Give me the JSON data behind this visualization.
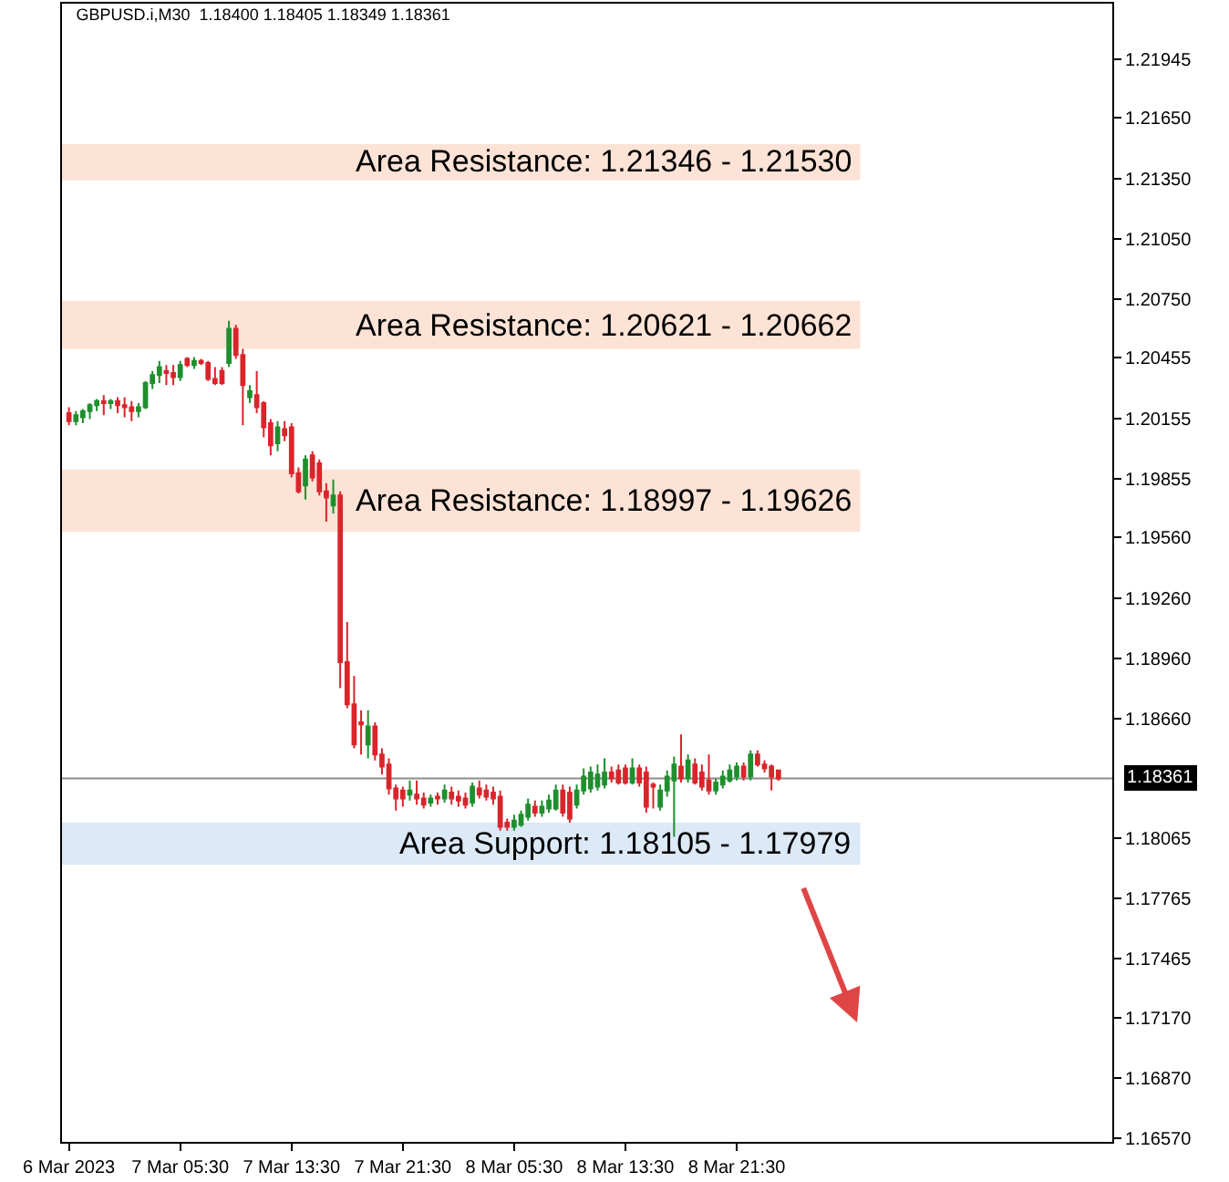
{
  "chart_data": {
    "type": "candlestick",
    "title": "GBPUSD.i,M30  1.18400 1.18405 1.18349 1.18361",
    "x": [
      "2023-03-06T21:30",
      "2023-03-06T22:00",
      "2023-03-06T22:30",
      "2023-03-06T23:00",
      "2023-03-06T23:30",
      "2023-03-07T00:00",
      "2023-03-07T00:30",
      "2023-03-07T01:00",
      "2023-03-07T01:30",
      "2023-03-07T02:00",
      "2023-03-07T02:30",
      "2023-03-07T03:00",
      "2023-03-07T03:30",
      "2023-03-07T04:00",
      "2023-03-07T04:30",
      "2023-03-07T05:00",
      "2023-03-07T05:30",
      "2023-03-07T06:00",
      "2023-03-07T06:30",
      "2023-03-07T07:00",
      "2023-03-07T07:30",
      "2023-03-07T08:00",
      "2023-03-07T08:30",
      "2023-03-07T09:00",
      "2023-03-07T09:30",
      "2023-03-07T10:00",
      "2023-03-07T10:30",
      "2023-03-07T11:00",
      "2023-03-07T11:30",
      "2023-03-07T12:00",
      "2023-03-07T12:30",
      "2023-03-07T13:00",
      "2023-03-07T13:30",
      "2023-03-07T14:00",
      "2023-03-07T14:30",
      "2023-03-07T15:00",
      "2023-03-07T15:30",
      "2023-03-07T16:00",
      "2023-03-07T16:30",
      "2023-03-07T17:00",
      "2023-03-07T17:30",
      "2023-03-07T18:00",
      "2023-03-07T18:30",
      "2023-03-07T19:00",
      "2023-03-07T19:30",
      "2023-03-07T20:00",
      "2023-03-07T20:30",
      "2023-03-07T21:00",
      "2023-03-07T21:30",
      "2023-03-07T22:00",
      "2023-03-07T22:30",
      "2023-03-07T23:00",
      "2023-03-07T23:30",
      "2023-03-08T00:00",
      "2023-03-08T00:30",
      "2023-03-08T01:00",
      "2023-03-08T01:30",
      "2023-03-08T02:00",
      "2023-03-08T02:30",
      "2023-03-08T03:00",
      "2023-03-08T03:30",
      "2023-03-08T04:00",
      "2023-03-08T04:30",
      "2023-03-08T05:00",
      "2023-03-08T05:30",
      "2023-03-08T06:00",
      "2023-03-08T06:30",
      "2023-03-08T07:00",
      "2023-03-08T07:30",
      "2023-03-08T08:00",
      "2023-03-08T08:30",
      "2023-03-08T09:00",
      "2023-03-08T09:30",
      "2023-03-08T10:00",
      "2023-03-08T10:30",
      "2023-03-08T11:00",
      "2023-03-08T11:30",
      "2023-03-08T12:00",
      "2023-03-08T12:30",
      "2023-03-08T13:00",
      "2023-03-08T13:30",
      "2023-03-08T14:00",
      "2023-03-08T14:30",
      "2023-03-08T15:00",
      "2023-03-08T15:30",
      "2023-03-08T16:00",
      "2023-03-08T16:30",
      "2023-03-08T17:00",
      "2023-03-08T17:30",
      "2023-03-08T18:00",
      "2023-03-08T18:30",
      "2023-03-08T19:00",
      "2023-03-08T19:30",
      "2023-03-08T20:00",
      "2023-03-08T20:30",
      "2023-03-08T21:00",
      "2023-03-08T21:30",
      "2023-03-08T22:00",
      "2023-03-08T22:30",
      "2023-03-08T23:00",
      "2023-03-08T23:30",
      "2023-03-09T00:00",
      "2023-03-09T00:30"
    ],
    "ohlc": [
      [
        1.2018,
        1.2021,
        1.2012,
        1.2014
      ],
      [
        1.2014,
        1.2019,
        1.2012,
        1.2017
      ],
      [
        1.2016,
        1.202,
        1.2013,
        1.2019
      ],
      [
        1.2019,
        1.2023,
        1.2015,
        1.2022
      ],
      [
        1.2022,
        1.2025,
        1.2019,
        1.2024
      ],
      [
        1.2024,
        1.2027,
        1.2017,
        1.2023
      ],
      [
        1.2023,
        1.2025,
        1.202,
        1.2024
      ],
      [
        1.2024,
        1.2026,
        1.2018,
        1.2022
      ],
      [
        1.2022,
        1.2026,
        1.2016,
        1.2021
      ],
      [
        1.2021,
        1.2024,
        1.2014,
        1.2019
      ],
      [
        1.2019,
        1.2023,
        1.2016,
        1.2021
      ],
      [
        1.2021,
        1.2034,
        1.202,
        1.2033
      ],
      [
        1.2033,
        1.2039,
        1.203,
        1.2037
      ],
      [
        1.2037,
        1.2044,
        1.2033,
        1.2041
      ],
      [
        1.2039,
        1.2042,
        1.2032,
        1.2038
      ],
      [
        1.2038,
        1.2042,
        1.2032,
        1.2036
      ],
      [
        1.2036,
        1.2044,
        1.2034,
        1.2042
      ],
      [
        1.2045,
        1.2046,
        1.2041,
        1.2042
      ],
      [
        1.2042,
        1.2046,
        1.204,
        1.2044
      ],
      [
        1.2044,
        1.2045,
        1.2042,
        1.2043
      ],
      [
        1.2043,
        1.2044,
        1.2034,
        1.2035
      ],
      [
        1.2035,
        1.2041,
        1.2032,
        1.2033
      ],
      [
        1.2039,
        1.2041,
        1.2032,
        1.2033
      ],
      [
        1.2043,
        1.2064,
        1.2041,
        1.206
      ],
      [
        1.206,
        1.2062,
        1.2045,
        1.2047
      ],
      [
        1.2047,
        1.205,
        1.2012,
        1.2032
      ],
      [
        1.2026,
        1.2032,
        1.2023,
        1.2029
      ],
      [
        1.2027,
        1.2039,
        1.2018,
        1.2021
      ],
      [
        1.2023,
        1.2024,
        1.2006,
        1.2011
      ],
      [
        1.2013,
        1.2015,
        1.1997,
        1.2002
      ],
      [
        1.2003,
        1.2014,
        1.1999,
        1.2011
      ],
      [
        1.201,
        1.2014,
        1.2004,
        1.2007
      ],
      [
        1.2011,
        1.2013,
        1.1986,
        1.1988
      ],
      [
        1.1988,
        1.1991,
        1.1978,
        1.1979
      ],
      [
        1.1982,
        1.1997,
        1.1975,
        1.1995
      ],
      [
        1.1997,
        1.1999,
        1.1984,
        1.1986
      ],
      [
        1.1993,
        1.1995,
        1.1977,
        1.1979
      ],
      [
        1.1979,
        1.1983,
        1.1964,
        1.1976
      ],
      [
        1.1972,
        1.1985,
        1.1968,
        1.1977
      ],
      [
        1.1977,
        1.1979,
        1.1881,
        1.1894
      ],
      [
        1.1894,
        1.1914,
        1.1871,
        1.1873
      ],
      [
        1.1873,
        1.1887,
        1.1851,
        1.1853
      ],
      [
        1.1864,
        1.187,
        1.1848,
        1.1863
      ],
      [
        1.1853,
        1.187,
        1.1846,
        1.1862
      ],
      [
        1.1862,
        1.1864,
        1.1845,
        1.1848
      ],
      [
        1.1848,
        1.1851,
        1.1838,
        1.1842
      ],
      [
        1.1843,
        1.1846,
        1.1828,
        1.1831
      ],
      [
        1.1831,
        1.1833,
        1.182,
        1.1826
      ],
      [
        1.183,
        1.1832,
        1.1822,
        1.1826
      ],
      [
        1.1828,
        1.1835,
        1.1825,
        1.183
      ],
      [
        1.1828,
        1.1835,
        1.1823,
        1.1826
      ],
      [
        1.1826,
        1.1829,
        1.1821,
        1.1823
      ],
      [
        1.1824,
        1.1828,
        1.1822,
        1.1826
      ],
      [
        1.1827,
        1.1829,
        1.1823,
        1.1826
      ],
      [
        1.1826,
        1.1833,
        1.1824,
        1.183
      ],
      [
        1.1829,
        1.1832,
        1.1823,
        1.1826
      ],
      [
        1.1827,
        1.183,
        1.1822,
        1.1825
      ],
      [
        1.1826,
        1.1829,
        1.1821,
        1.1823
      ],
      [
        1.1824,
        1.1834,
        1.1822,
        1.1832
      ],
      [
        1.1831,
        1.1835,
        1.1826,
        1.1828
      ],
      [
        1.183,
        1.1833,
        1.1825,
        1.1827
      ],
      [
        1.1829,
        1.1832,
        1.1823,
        1.1826
      ],
      [
        1.1827,
        1.183,
        1.181,
        1.1812
      ],
      [
        1.1814,
        1.1816,
        1.181,
        1.1812
      ],
      [
        1.1812,
        1.1818,
        1.181,
        1.1815
      ],
      [
        1.1813,
        1.182,
        1.1812,
        1.1818
      ],
      [
        1.1817,
        1.1826,
        1.1815,
        1.1823
      ],
      [
        1.1822,
        1.1825,
        1.1817,
        1.1819
      ],
      [
        1.1819,
        1.1825,
        1.1817,
        1.1822
      ],
      [
        1.1821,
        1.1828,
        1.1819,
        1.1825
      ],
      [
        1.1821,
        1.1833,
        1.182,
        1.183
      ],
      [
        1.183,
        1.1833,
        1.1817,
        1.1819
      ],
      [
        1.1829,
        1.1832,
        1.1814,
        1.1816
      ],
      [
        1.1823,
        1.1833,
        1.1821,
        1.183
      ],
      [
        1.183,
        1.1841,
        1.1828,
        1.1837
      ],
      [
        1.1831,
        1.1842,
        1.1829,
        1.1839
      ],
      [
        1.1832,
        1.1843,
        1.183,
        1.1838
      ],
      [
        1.1833,
        1.1846,
        1.1831,
        1.1839
      ],
      [
        1.1839,
        1.1842,
        1.1834,
        1.1836
      ],
      [
        1.184,
        1.1843,
        1.1833,
        1.1834
      ],
      [
        1.1841,
        1.1843,
        1.1833,
        1.1834
      ],
      [
        1.1834,
        1.1846,
        1.1833,
        1.1841
      ],
      [
        1.1841,
        1.1843,
        1.1832,
        1.1834
      ],
      [
        1.1839,
        1.1842,
        1.1819,
        1.1822
      ],
      [
        1.1833,
        1.1834,
        1.1821,
        1.1832
      ],
      [
        1.1822,
        1.1833,
        1.182,
        1.183
      ],
      [
        1.183,
        1.184,
        1.1827,
        1.1837
      ],
      [
        1.1835,
        1.1847,
        1.1807,
        1.1843
      ],
      [
        1.1842,
        1.1858,
        1.1834,
        1.1836
      ],
      [
        1.1836,
        1.1848,
        1.1834,
        1.1845
      ],
      [
        1.1843,
        1.1846,
        1.1833,
        1.1834
      ],
      [
        1.1839,
        1.1843,
        1.183,
        1.1832
      ],
      [
        1.1835,
        1.1848,
        1.1828,
        1.183
      ],
      [
        1.183,
        1.1836,
        1.1828,
        1.1834
      ],
      [
        1.1833,
        1.184,
        1.1831,
        1.1837
      ],
      [
        1.1835,
        1.1843,
        1.1834,
        1.184
      ],
      [
        1.1837,
        1.1844,
        1.1835,
        1.1842
      ],
      [
        1.1842,
        1.1844,
        1.1835,
        1.1837
      ],
      [
        1.1837,
        1.185,
        1.1835,
        1.1848
      ],
      [
        1.1848,
        1.185,
        1.1842,
        1.1843
      ],
      [
        1.1843,
        1.1845,
        1.1839,
        1.1841
      ],
      [
        1.1842,
        1.1843,
        1.183,
        1.1837
      ],
      [
        1.184,
        1.18405,
        1.18349,
        1.18361
      ]
    ],
    "colors": [
      "#d9252b",
      "#1f8f2e",
      "#1f8f2e",
      "#1f8f2e",
      "#1f8f2e",
      "#d9252b",
      "#1f8f2e",
      "#d9252b",
      "#d9252b",
      "#d9252b",
      "#1f8f2e",
      "#1f8f2e",
      "#1f8f2e",
      "#1f8f2e",
      "#d9252b",
      "#d9252b",
      "#1f8f2e",
      "#d9252b",
      "#1f8f2e",
      "#d9252b",
      "#d9252b",
      "#d9252b",
      "#d9252b",
      "#1f8f2e",
      "#d9252b",
      "#d9252b",
      "#1f8f2e",
      "#d9252b",
      "#d9252b",
      "#d9252b",
      "#1f8f2e",
      "#d9252b",
      "#d9252b",
      "#d9252b",
      "#1f8f2e",
      "#d9252b",
      "#d9252b",
      "#d9252b",
      "#1f8f2e",
      "#d9252b",
      "#d9252b",
      "#d9252b",
      "#d9252b",
      "#1f8f2e",
      "#d9252b",
      "#d9252b",
      "#d9252b",
      "#d9252b",
      "#d9252b",
      "#1f8f2e",
      "#d9252b",
      "#d9252b",
      "#1f8f2e",
      "#d9252b",
      "#1f8f2e",
      "#d9252b",
      "#d9252b",
      "#d9252b",
      "#1f8f2e",
      "#d9252b",
      "#d9252b",
      "#d9252b",
      "#d9252b",
      "#d9252b",
      "#1f8f2e",
      "#1f8f2e",
      "#1f8f2e",
      "#d9252b",
      "#1f8f2e",
      "#1f8f2e",
      "#1f8f2e",
      "#d9252b",
      "#d9252b",
      "#1f8f2e",
      "#1f8f2e",
      "#1f8f2e",
      "#1f8f2e",
      "#1f8f2e",
      "#d9252b",
      "#d9252b",
      "#d9252b",
      "#1f8f2e",
      "#d9252b",
      "#d9252b",
      "#d9252b",
      "#1f8f2e",
      "#1f8f2e",
      "#1f8f2e",
      "#d9252b",
      "#1f8f2e",
      "#d9252b",
      "#d9252b",
      "#d9252b",
      "#1f8f2e",
      "#1f8f2e",
      "#1f8f2e",
      "#1f8f2e",
      "#d9252b",
      "#1f8f2e",
      "#d9252b",
      "#d9252b",
      "#d9252b",
      "#d9252b"
    ],
    "xlim": [
      "2023-03-06T21:00",
      "2023-03-10T00:30"
    ],
    "xticks": [
      {
        "value": "2023-03-06T21:30",
        "label": "6 Mar 2023"
      },
      {
        "value": "2023-03-07T05:30",
        "label": "7 Mar 05:30"
      },
      {
        "value": "2023-03-07T13:30",
        "label": "7 Mar 13:30"
      },
      {
        "value": "2023-03-07T21:30",
        "label": "7 Mar 21:30"
      },
      {
        "value": "2023-03-08T05:30",
        "label": "8 Mar 05:30"
      },
      {
        "value": "2023-03-08T13:30",
        "label": "8 Mar 13:30"
      },
      {
        "value": "2023-03-08T21:30",
        "label": "8 Mar 21:30"
      }
    ],
    "ylim": [
      1.1655,
      1.2222
    ],
    "yticks": [
      {
        "value": 1.21945,
        "label": "1.21945"
      },
      {
        "value": 1.2165,
        "label": "1.21650"
      },
      {
        "value": 1.2135,
        "label": "1.21350"
      },
      {
        "value": 1.2105,
        "label": "1.21050"
      },
      {
        "value": 1.2075,
        "label": "1.20750"
      },
      {
        "value": 1.20455,
        "label": "1.20455"
      },
      {
        "value": 1.20155,
        "label": "1.20155"
      },
      {
        "value": 1.19855,
        "label": "1.19855"
      },
      {
        "value": 1.1956,
        "label": "1.19560"
      },
      {
        "value": 1.1926,
        "label": "1.19260"
      },
      {
        "value": 1.1896,
        "label": "1.18960"
      },
      {
        "value": 1.1866,
        "label": "1.18660"
      },
      {
        "value": 1.18065,
        "label": "1.18065"
      },
      {
        "value": 1.17765,
        "label": "1.17765"
      },
      {
        "value": 1.17465,
        "label": "1.17465"
      },
      {
        "value": 1.1717,
        "label": "1.17170"
      },
      {
        "value": 1.1687,
        "label": "1.16870"
      },
      {
        "value": 1.1657,
        "label": "1.16570"
      }
    ],
    "ref_lines": [
      {
        "axis": "y",
        "value": 1.18361,
        "label": "1.18361",
        "color": "#8c8c8c"
      }
    ],
    "bands": [
      {
        "axis": "y",
        "from": 1.2134,
        "to": 1.2152,
        "label": "Area Resistance: 1.21346 - 1.21530",
        "color": "#fde3d6"
      },
      {
        "axis": "y",
        "from": 1.205,
        "to": 1.2074,
        "label": "Area Resistance: 1.20621 - 1.20662",
        "color": "#fde3d6"
      },
      {
        "axis": "y",
        "from": 1.1959,
        "to": 1.199,
        "label": "Area Resistance: 1.18997 - 1.19626",
        "color": "#fde3d6"
      },
      {
        "axis": "y",
        "from": 1.1793,
        "to": 1.1814,
        "label": "Area Support: 1.18105 - 1.17979",
        "color": "#dce9f7"
      }
    ]
  }
}
